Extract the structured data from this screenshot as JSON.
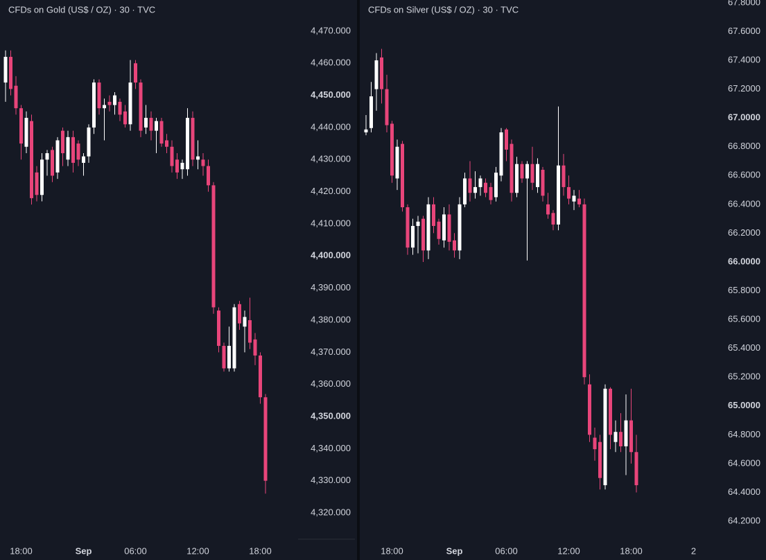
{
  "chart_data": [
    {
      "type": "candlestick",
      "title": "CFDs on Gold (US$ / OZ) · 30 · TVC",
      "categories": [
        null,
        null,
        null,
        "18:00",
        null,
        null,
        null,
        null,
        null,
        null,
        null,
        null,
        null,
        null,
        null,
        "Sep",
        null,
        null,
        null,
        null,
        null,
        null,
        null,
        null,
        null,
        "06:00",
        null,
        null,
        null,
        null,
        null,
        null,
        null,
        null,
        null,
        null,
        null,
        "12:00",
        null,
        null,
        null,
        null,
        null,
        null,
        null,
        null,
        null,
        null,
        null,
        "18:00",
        null
      ],
      "bold_categories": [
        15
      ],
      "open": [
        4454,
        4462,
        4453,
        4446,
        4434,
        4442,
        4426,
        4419,
        4430,
        4433,
        4426,
        4439,
        4430,
        4437,
        4435,
        4429,
        4431,
        4440,
        4454,
        4446,
        4448,
        4447,
        4448,
        4445,
        4441,
        4460,
        4454,
        4440,
        4443,
        4439,
        4442,
        4436,
        4434,
        4430,
        4427,
        4427,
        4443,
        4430,
        4430,
        4428,
        4422,
        4383,
        4372,
        4365,
        4365,
        4385,
        4378,
        4380,
        4374,
        4369,
        4356
      ],
      "high": [
        4464,
        4464,
        4456,
        4447,
        4445,
        4444,
        4428,
        4432,
        4433,
        4434,
        4437,
        4440,
        4439,
        4439,
        4436,
        4432,
        4441,
        4455,
        4455,
        4449,
        4450,
        4451,
        4449,
        4447,
        4461,
        4461,
        4455,
        4447,
        4445,
        4443,
        4443,
        4438,
        4436,
        4432,
        4430,
        4446,
        4445,
        4436,
        4432,
        4430,
        4423,
        4384,
        4373,
        4378,
        4385,
        4386,
        4383,
        4387,
        4376,
        4370,
        4357
      ],
      "low": [
        4448,
        4450,
        4444,
        4430,
        4432,
        4416,
        4417,
        4417,
        4425,
        4423,
        4424,
        4428,
        4428,
        4426,
        4428,
        4425,
        4429,
        4438,
        4444,
        4436,
        4445,
        4444,
        4442,
        4440,
        4439,
        4452,
        4437,
        4438,
        4436,
        4432,
        4434,
        4432,
        4426,
        4424,
        4424,
        4425,
        4428,
        4427,
        4425,
        4420,
        4382,
        4370,
        4364,
        4364,
        4364,
        4377,
        4370,
        4371,
        4366,
        4354,
        4326
      ],
      "close": [
        4462,
        4452,
        4446,
        4435,
        4443,
        4418,
        4419,
        4430,
        4432,
        4425,
        4436,
        4432,
        4437,
        4429,
        4430,
        4431,
        4440,
        4454,
        4446,
        4447,
        4447,
        4450,
        4444,
        4441,
        4454,
        4454,
        4439,
        4443,
        4439,
        4442,
        4435,
        4434,
        4428,
        4426,
        4429,
        4443,
        4430,
        4431,
        4428,
        4422,
        4384,
        4372,
        4365,
        4372,
        4384,
        4379,
        4381,
        4373,
        4369,
        4356,
        4330
      ],
      "up_color": "#ffffff",
      "down_color": "#e8457a",
      "ylim": [
        4311.8,
        4479.7
      ],
      "yticks": [
        {
          "value": 4470,
          "label": "4,470.000"
        },
        {
          "value": 4460,
          "label": "4,460.000"
        },
        {
          "value": 4450,
          "label": "4,450.000",
          "bold": true
        },
        {
          "value": 4440,
          "label": "4,440.000"
        },
        {
          "value": 4430,
          "label": "4,430.000"
        },
        {
          "value": 4420,
          "label": "4,420.000"
        },
        {
          "value": 4410,
          "label": "4,410.000"
        },
        {
          "value": 4400,
          "label": "4,400.000",
          "bold": true
        },
        {
          "value": 4390,
          "label": "4,390.000"
        },
        {
          "value": 4380,
          "label": "4,380.000"
        },
        {
          "value": 4370,
          "label": "4,370.000"
        },
        {
          "value": 4360,
          "label": "4,360.000"
        },
        {
          "value": 4350,
          "label": "4,350.000",
          "bold": true
        },
        {
          "value": 4340,
          "label": "4,340.000"
        },
        {
          "value": 4330,
          "label": "4,330.000"
        },
        {
          "value": 4320,
          "label": "4,320.000"
        }
      ]
    },
    {
      "type": "candlestick",
      "title": "CFDs on Silver (US$ / OZ) · 30 · TVC",
      "categories": [
        null,
        null,
        null,
        null,
        null,
        "18:00",
        null,
        null,
        null,
        null,
        null,
        null,
        null,
        null,
        null,
        null,
        null,
        "Sep",
        null,
        null,
        null,
        null,
        null,
        null,
        null,
        null,
        null,
        "06:00",
        null,
        null,
        null,
        null,
        null,
        null,
        null,
        null,
        null,
        null,
        null,
        "12:00",
        null,
        null,
        null,
        null,
        null,
        null,
        null,
        null,
        null,
        null,
        null,
        "18:00",
        null,
        null,
        null,
        null,
        null,
        null,
        null,
        null,
        null,
        null,
        null,
        "2"
      ],
      "bold_categories": [
        17
      ],
      "open": [
        66.9,
        66.93,
        67.2,
        67.42,
        67.2,
        66.96,
        66.58,
        66.82,
        66.38,
        66.1,
        66.25,
        66.3,
        66.08,
        66.4,
        66.28,
        66.15,
        66.33,
        66.15,
        66.08,
        66.4,
        66.58,
        66.48,
        66.52,
        66.55,
        66.52,
        66.45,
        66.6,
        66.92,
        66.82,
        66.48,
        66.68,
        66.58,
        66.68,
        66.52,
        66.64,
        66.4,
        66.34,
        66.26,
        66.67,
        66.52,
        66.42,
        66.44,
        66.4,
        65.15,
        64.78,
        64.75,
        64.45,
        65.12,
        64.75,
        64.82,
        64.72,
        64.9,
        64.68,
        null,
        null,
        null,
        null,
        null,
        null,
        null,
        null,
        null,
        null,
        null
      ],
      "high": [
        67.02,
        67.25,
        67.45,
        67.48,
        67.3,
        66.98,
        66.85,
        66.84,
        66.4,
        66.3,
        66.32,
        66.32,
        66.45,
        66.45,
        66.3,
        66.38,
        66.4,
        66.2,
        66.45,
        66.62,
        66.7,
        66.63,
        66.6,
        66.58,
        66.55,
        66.66,
        66.93,
        66.93,
        66.85,
        66.73,
        66.7,
        66.7,
        66.8,
        66.72,
        66.66,
        66.48,
        66.36,
        67.08,
        66.75,
        66.6,
        66.5,
        66.5,
        66.44,
        65.22,
        64.85,
        64.8,
        65.15,
        65.13,
        64.9,
        64.95,
        65.08,
        65.12,
        64.8,
        null,
        null,
        null,
        null,
        null,
        null,
        null,
        null,
        null,
        null,
        null
      ],
      "low": [
        66.88,
        66.9,
        67.05,
        67.1,
        66.9,
        66.55,
        66.5,
        66.35,
        66.05,
        66.05,
        66.06,
        66.0,
        66.02,
        66.2,
        66.12,
        66.1,
        66.08,
        66.03,
        66.02,
        66.38,
        66.42,
        66.44,
        66.46,
        66.45,
        66.4,
        66.42,
        66.56,
        66.7,
        66.42,
        66.45,
        66.55,
        66.01,
        66.5,
        66.48,
        66.42,
        66.3,
        66.22,
        66.22,
        66.46,
        66.4,
        66.36,
        66.38,
        65.15,
        64.75,
        64.62,
        64.42,
        64.42,
        64.7,
        64.68,
        64.68,
        64.52,
        64.6,
        64.4,
        null,
        null,
        null,
        null,
        null,
        null,
        null,
        null,
        null,
        null,
        null
      ],
      "close": [
        66.92,
        67.15,
        67.4,
        67.2,
        66.95,
        66.6,
        66.8,
        66.38,
        66.1,
        66.25,
        66.28,
        66.08,
        66.4,
        66.25,
        66.16,
        66.33,
        66.14,
        66.08,
        66.4,
        66.58,
        66.48,
        66.52,
        66.58,
        66.48,
        66.43,
        66.62,
        66.9,
        66.78,
        66.48,
        66.68,
        66.58,
        66.68,
        66.55,
        66.68,
        66.46,
        66.33,
        66.26,
        66.67,
        66.52,
        66.44,
        66.46,
        66.4,
        65.2,
        64.8,
        64.7,
        64.5,
        65.12,
        64.8,
        64.82,
        64.72,
        64.9,
        64.68,
        64.45,
        null,
        null,
        null,
        null,
        null,
        null,
        null,
        null,
        null,
        null,
        null
      ],
      "up_color": "#ffffff",
      "down_color": "#e8457a",
      "ylim": [
        64.075,
        67.819
      ],
      "yticks": [
        {
          "value": 67.8,
          "label": "67.8000"
        },
        {
          "value": 67.6,
          "label": "67.6000"
        },
        {
          "value": 67.4,
          "label": "67.4000"
        },
        {
          "value": 67.2,
          "label": "67.2000"
        },
        {
          "value": 67.0,
          "label": "67.0000",
          "bold": true
        },
        {
          "value": 66.8,
          "label": "66.8000"
        },
        {
          "value": 66.6,
          "label": "66.6000"
        },
        {
          "value": 66.4,
          "label": "66.4000"
        },
        {
          "value": 66.2,
          "label": "66.2000"
        },
        {
          "value": 66.0,
          "label": "66.0000",
          "bold": true
        },
        {
          "value": 65.8,
          "label": "65.8000"
        },
        {
          "value": 65.6,
          "label": "65.6000"
        },
        {
          "value": 65.4,
          "label": "65.4000"
        },
        {
          "value": 65.2,
          "label": "65.2000"
        },
        {
          "value": 65.0,
          "label": "65.0000",
          "bold": true
        },
        {
          "value": 64.8,
          "label": "64.8000"
        },
        {
          "value": 64.6,
          "label": "64.6000"
        },
        {
          "value": 64.4,
          "label": "64.4000"
        },
        {
          "value": 64.2,
          "label": "64.2000"
        }
      ]
    }
  ]
}
